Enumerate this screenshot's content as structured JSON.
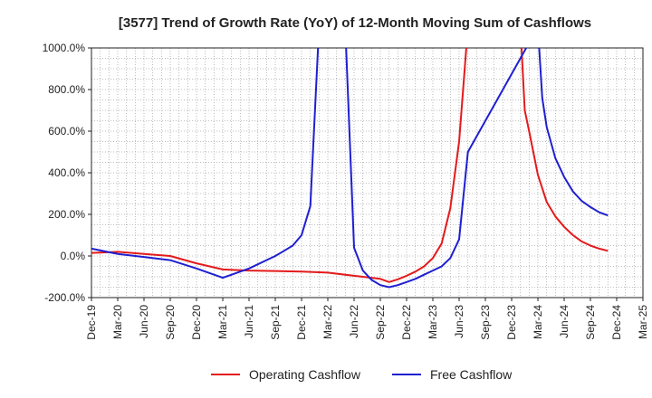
{
  "chart_data": {
    "type": "line",
    "title": "[3577]  Trend of Growth Rate (YoY) of 12-Month Moving Sum of Cashflows",
    "xlabel": "",
    "ylabel": "",
    "ylim": [
      -200,
      1000
    ],
    "yticks": [
      -200,
      0,
      200,
      400,
      600,
      800,
      1000
    ],
    "ytick_labels": [
      "-200.0%",
      "0.0%",
      "200.0%",
      "400.0%",
      "600.0%",
      "800.0%",
      "1000.0%"
    ],
    "xtick_labels": [
      "Dec-19",
      "Mar-20",
      "Jun-20",
      "Sep-20",
      "Dec-20",
      "Mar-21",
      "Jun-21",
      "Sep-21",
      "Dec-21",
      "Mar-22",
      "Jun-22",
      "Sep-22",
      "Dec-22",
      "Mar-23",
      "Jun-23",
      "Sep-23",
      "Dec-23",
      "Mar-24",
      "Jun-24",
      "Sep-24",
      "Dec-24",
      "Mar-25"
    ],
    "grid": true,
    "legend_position": "bottom",
    "series": [
      {
        "name": "Operating Cashflow",
        "color": "#e31a1c",
        "points": [
          [
            0,
            15
          ],
          [
            3,
            20
          ],
          [
            6,
            10
          ],
          [
            9,
            0
          ],
          [
            12,
            -35
          ],
          [
            15,
            -65
          ],
          [
            18,
            -70
          ],
          [
            21,
            -72
          ],
          [
            24,
            -75
          ],
          [
            27,
            -80
          ],
          [
            30,
            -95
          ],
          [
            33,
            -110
          ],
          [
            34,
            -125
          ],
          [
            35,
            -112
          ],
          [
            36,
            -95
          ],
          [
            37,
            -75
          ],
          [
            38,
            -50
          ],
          [
            39,
            -10
          ],
          [
            40,
            60
          ],
          [
            41,
            230
          ],
          [
            42,
            550
          ],
          [
            43,
            1100
          ],
          [
            49,
            1100
          ],
          [
            49.5,
            700
          ],
          [
            50,
            600
          ],
          [
            51,
            390
          ],
          [
            52,
            260
          ],
          [
            53,
            190
          ],
          [
            54,
            140
          ],
          [
            55,
            100
          ],
          [
            56,
            70
          ],
          [
            57,
            50
          ],
          [
            58,
            35
          ],
          [
            59,
            25
          ]
        ]
      },
      {
        "name": "Free Cashflow",
        "color": "#1f1fd2",
        "points": [
          [
            0,
            35
          ],
          [
            3,
            10
          ],
          [
            6,
            -5
          ],
          [
            9,
            -20
          ],
          [
            12,
            -60
          ],
          [
            15,
            -105
          ],
          [
            16,
            -90
          ],
          [
            18,
            -60
          ],
          [
            21,
            0
          ],
          [
            22,
            25
          ],
          [
            23,
            50
          ],
          [
            24,
            100
          ],
          [
            25,
            240
          ],
          [
            26,
            1100
          ],
          [
            29,
            1100
          ],
          [
            30,
            40
          ],
          [
            31,
            -70
          ],
          [
            32,
            -115
          ],
          [
            33,
            -140
          ],
          [
            34,
            -150
          ],
          [
            35,
            -140
          ],
          [
            36,
            -125
          ],
          [
            37,
            -110
          ],
          [
            38,
            -90
          ],
          [
            39,
            -70
          ],
          [
            40,
            -50
          ],
          [
            41,
            -10
          ],
          [
            42,
            80
          ],
          [
            43,
            500
          ],
          [
            51,
            1100
          ],
          [
            51.5,
            760
          ],
          [
            52,
            620
          ],
          [
            53,
            470
          ],
          [
            54,
            380
          ],
          [
            55,
            310
          ],
          [
            56,
            265
          ],
          [
            57,
            235
          ],
          [
            58,
            210
          ],
          [
            59,
            195
          ]
        ]
      }
    ]
  }
}
